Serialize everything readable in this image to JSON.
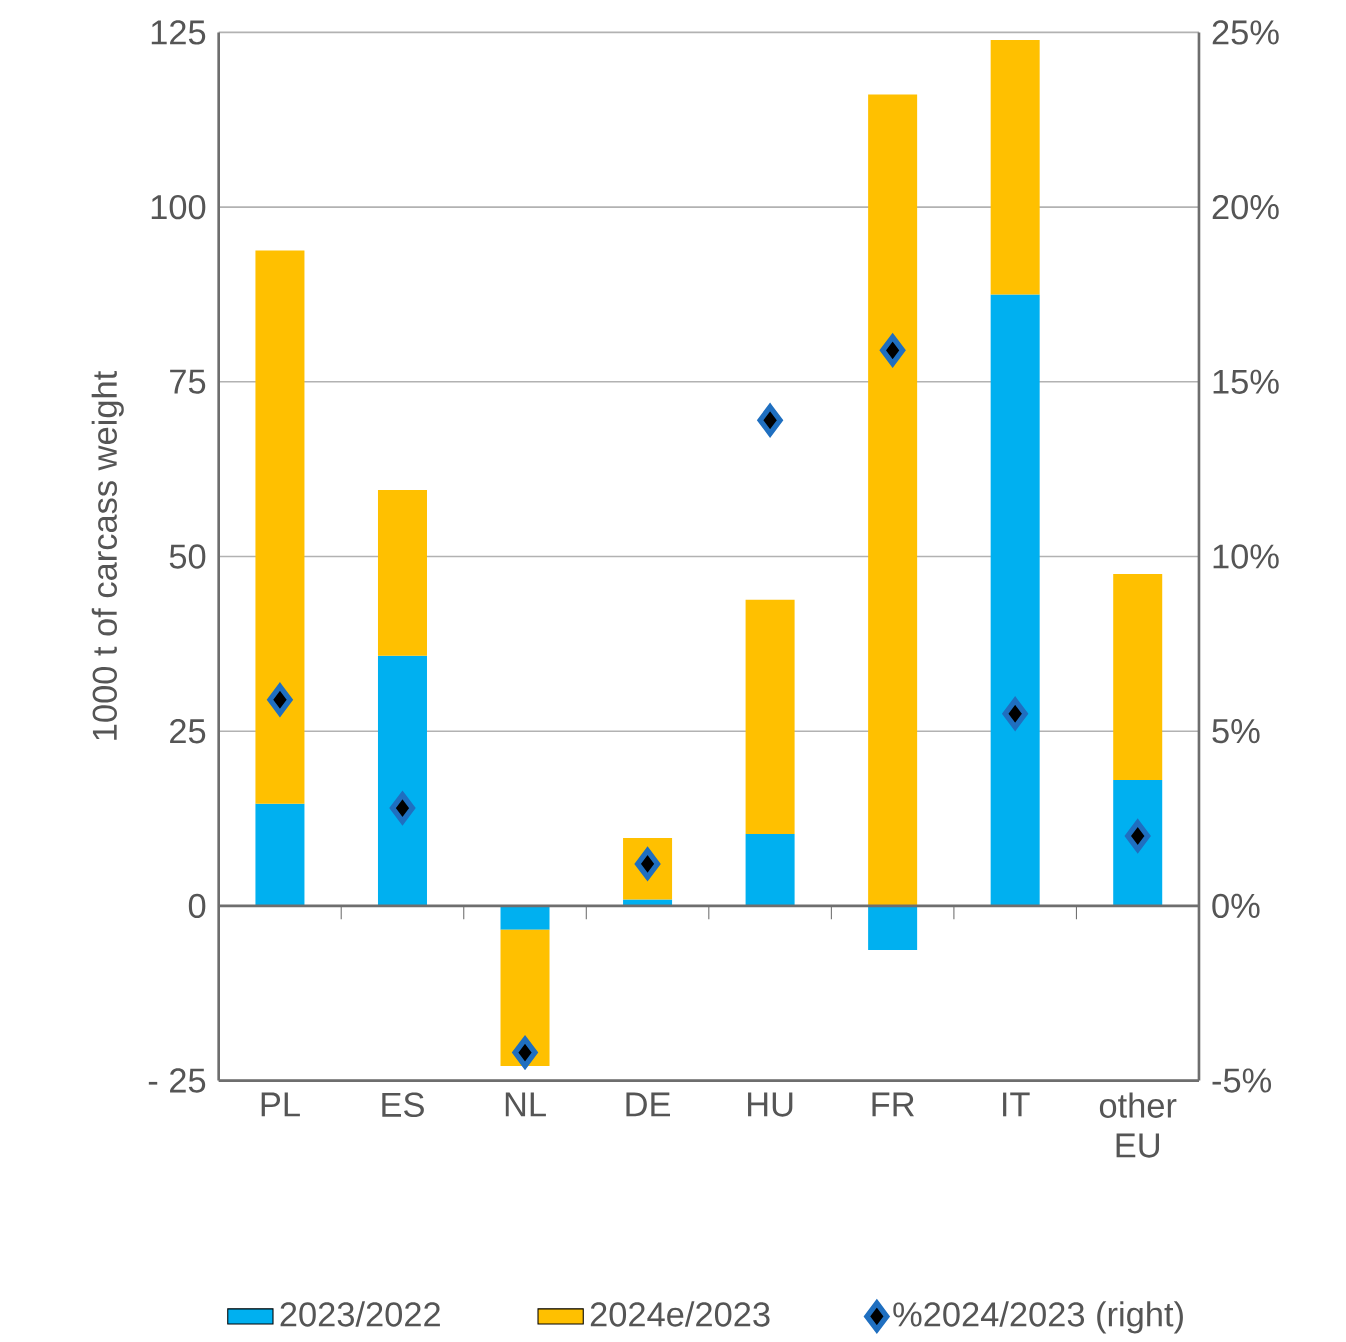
{
  "chart_data": {
    "type": "bar",
    "stacked": true,
    "categories": [
      "PL",
      "ES",
      "NL",
      "DE",
      "HU",
      "FR",
      "IT",
      "other EU"
    ],
    "series": [
      {
        "name": "2023/2022",
        "color": "#00b0f0",
        "values": [
          14.6,
          35.8,
          -3.4,
          0.9,
          10.3,
          -6.3,
          87.5,
          18.0
        ]
      },
      {
        "name": "2024e/2023",
        "color": "#ffc000",
        "values": [
          79.2,
          23.7,
          -19.5,
          8.8,
          33.5,
          116.1,
          36.4,
          29.5
        ]
      },
      {
        "name": "%2024/2023 (right)",
        "type": "scatter",
        "axis": "y2",
        "color": "#000000",
        "values": [
          5.9,
          2.8,
          -4.2,
          1.2,
          13.9,
          15.9,
          5.5,
          2.0
        ]
      }
    ],
    "ylabel": "1000 t of carcass weight",
    "ylim": [
      -25,
      125
    ],
    "yticks": [
      {
        "value": -25,
        "label": "- 25"
      },
      0,
      25,
      50,
      75,
      100,
      125
    ],
    "y2lim": [
      -5,
      25
    ],
    "y2ticks": [
      {
        "value": -5,
        "label": "-5%"
      },
      {
        "value": 0,
        "label": "0%"
      },
      {
        "value": 5,
        "label": "5%"
      },
      {
        "value": 10,
        "label": "10%"
      },
      {
        "value": 15,
        "label": "15%"
      },
      {
        "value": 20,
        "label": "20%"
      },
      {
        "value": 25,
        "label": "25%"
      }
    ],
    "grid": "y",
    "legend": "bottom",
    "marker": "diamond"
  }
}
